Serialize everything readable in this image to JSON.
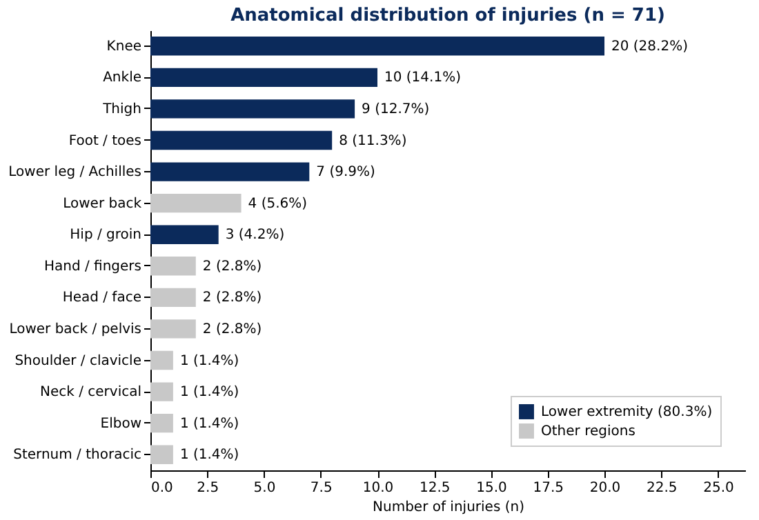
{
  "chart_data": {
    "type": "bar",
    "orientation": "horizontal",
    "title": "Anatomical distribution of injuries (n = 71)",
    "xlabel": "Number of injuries (n)",
    "categories": [
      "Knee",
      "Ankle",
      "Thigh",
      "Foot / toes",
      "Lower leg / Achilles",
      "Lower back",
      "Hip / groin",
      "Hand / fingers",
      "Head / face",
      "Lower back / pelvis",
      "Shoulder / clavicle",
      "Neck / cervical",
      "Elbow",
      "Sternum / thoracic"
    ],
    "series": [
      {
        "name": "Lower extremity (80.3%)",
        "color": "#0b2a5b",
        "values": [
          20,
          10,
          9,
          8,
          7,
          null,
          3,
          null,
          null,
          null,
          null,
          null,
          null,
          null
        ],
        "value_labels": [
          "20 (28.2%)",
          "10 (14.1%)",
          "9 (12.7%)",
          "8 (11.3%)",
          "7 (9.9%)",
          null,
          "3 (4.2%)",
          null,
          null,
          null,
          null,
          null,
          null,
          null
        ]
      },
      {
        "name": "Other regions",
        "color": "#c8c8c8",
        "values": [
          null,
          null,
          null,
          null,
          null,
          4,
          null,
          2,
          2,
          2,
          1,
          1,
          1,
          1
        ],
        "value_labels": [
          null,
          null,
          null,
          null,
          null,
          "4 (5.6%)",
          null,
          "2 (2.8%)",
          "2 (2.8%)",
          "2 (2.8%)",
          "1 (1.4%)",
          "1 (1.4%)",
          "1 (1.4%)",
          "1 (1.4%)"
        ]
      }
    ],
    "xlim": [
      0,
      26.2
    ],
    "xticks": [
      {
        "value": 0,
        "label": "0.0"
      },
      2.5,
      {
        "value": 5,
        "label": "5.0"
      },
      7.5,
      {
        "value": 10,
        "label": "10.0"
      },
      12.5,
      {
        "value": 15,
        "label": "15.0"
      },
      17.5,
      {
        "value": 20,
        "label": "20.0"
      },
      22.5,
      {
        "value": 25,
        "label": "25.0"
      }
    ],
    "grid": false,
    "legend": "bottom right"
  }
}
